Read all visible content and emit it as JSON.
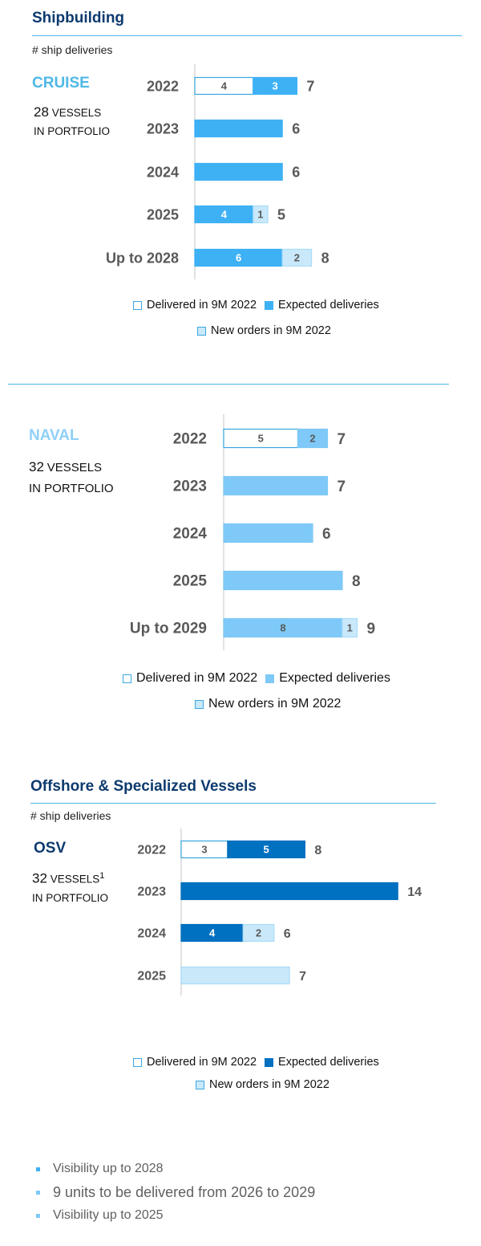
{
  "shipbuilding": {
    "title": "Shipbuilding",
    "subtitle": "# ship deliveries"
  },
  "offshore": {
    "title": "Offshore & Specialized Vessels",
    "subtitle": "# ship deliveries"
  },
  "cruise": {
    "label": "CRUISE",
    "vessels_count": "28",
    "vessels_word": "VESSELS",
    "portfolio_text": "IN PORTFOLIO"
  },
  "naval": {
    "label": "NAVAL",
    "vessels_count": "32",
    "vessels_word": "VESSELS",
    "portfolio_text": "IN PORTFOLIO"
  },
  "osv": {
    "label": "OSV",
    "vessels_count": "32",
    "vessels_word": "VESSELS",
    "footnote": "1",
    "portfolio_text": "IN PORTFOLIO"
  },
  "legend": {
    "delivered": "Delivered in 9M 2022",
    "expected": "Expected deliveries",
    "new_orders": "New orders in 9M 2022"
  },
  "bullets": [
    {
      "text": "Visibility up to 2028",
      "color": "#3eb1f5"
    },
    {
      "text": "9 units to be delivered from 2026 to 2029",
      "color": "#7ec9f7"
    },
    {
      "text": "Visibility up to 2025",
      "color": "#7ec9f7"
    }
  ],
  "colors": {
    "cruise_expected": "#3eb1f5",
    "naval_expected": "#7ec9f7",
    "osv_expected": "#0070c0",
    "new_orders": "#c9e9fb",
    "outline": "#3aa7de",
    "text_gray": "#595959"
  },
  "chart_data": [
    {
      "type": "bar",
      "orientation": "horizontal",
      "stacked": true,
      "title": "CRUISE",
      "categories": [
        "2022",
        "2023",
        "2024",
        "2025",
        "Up to 2028"
      ],
      "series": [
        {
          "name": "Delivered in 9M 2022",
          "values": [
            4,
            0,
            0,
            0,
            0
          ]
        },
        {
          "name": "Expected deliveries",
          "values": [
            3,
            6,
            6,
            4,
            6
          ]
        },
        {
          "name": "New orders in 9M 2022",
          "values": [
            0,
            0,
            0,
            1,
            2
          ]
        }
      ],
      "totals": [
        7,
        6,
        6,
        5,
        8
      ],
      "legend_position": "bottom",
      "grid": false
    },
    {
      "type": "bar",
      "orientation": "horizontal",
      "stacked": true,
      "title": "NAVAL",
      "categories": [
        "2022",
        "2023",
        "2024",
        "2025",
        "Up to 2029"
      ],
      "series": [
        {
          "name": "Delivered in 9M 2022",
          "values": [
            5,
            0,
            0,
            0,
            0
          ]
        },
        {
          "name": "Expected deliveries",
          "values": [
            2,
            7,
            6,
            8,
            8
          ]
        },
        {
          "name": "New orders in 9M 2022",
          "values": [
            0,
            0,
            0,
            0,
            1
          ]
        }
      ],
      "totals": [
        7,
        7,
        6,
        8,
        9
      ],
      "legend_position": "bottom",
      "grid": false
    },
    {
      "type": "bar",
      "orientation": "horizontal",
      "stacked": true,
      "title": "OSV",
      "categories": [
        "2022",
        "2023",
        "2024",
        "2025"
      ],
      "series": [
        {
          "name": "Delivered in 9M 2022",
          "values": [
            3,
            0,
            0,
            0
          ]
        },
        {
          "name": "Expected deliveries",
          "values": [
            5,
            14,
            4,
            0
          ]
        },
        {
          "name": "New orders in 9M 2022",
          "values": [
            0,
            0,
            2,
            7
          ]
        }
      ],
      "totals": [
        8,
        14,
        6,
        7
      ],
      "legend_position": "bottom",
      "grid": false
    }
  ]
}
